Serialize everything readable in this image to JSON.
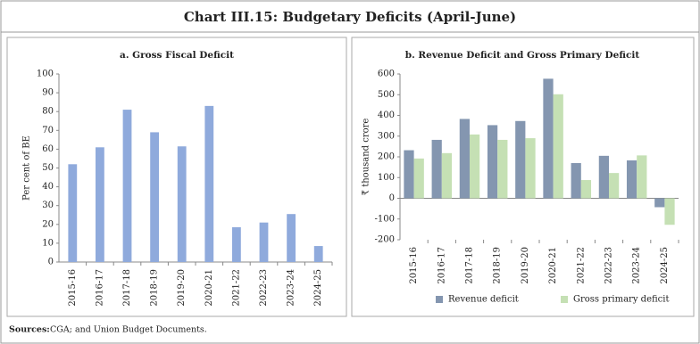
{
  "title": "Chart III.15: Budgetary Deficits (April-June)",
  "sources": {
    "label": "Sources:",
    "text": "CGA; and Union Budget Documents."
  },
  "chart_data": [
    {
      "type": "bar",
      "title": "a. Gross Fiscal Deficit",
      "y_label": "Per cent of BE",
      "categories": [
        "2015-16",
        "2016-17",
        "2017-18",
        "2018-19",
        "2019-20",
        "2020-21",
        "2021-22",
        "2022-23",
        "2023-24",
        "2024-25"
      ],
      "values": [
        52,
        61,
        81,
        69,
        61.5,
        83,
        18.5,
        21,
        25.5,
        8.5
      ],
      "color": "#8faadc",
      "ylim": [
        0,
        100
      ],
      "yticks": [
        0,
        10,
        20,
        30,
        40,
        50,
        60,
        70,
        80,
        90,
        100
      ]
    },
    {
      "type": "bar",
      "title": "b. Revenue Deficit and Gross Primary Deficit",
      "y_label": "₹ thousand crore",
      "categories": [
        "2015-16",
        "2016-17",
        "2017-18",
        "2018-19",
        "2019-20",
        "2020-21",
        "2021-22",
        "2022-23",
        "2023-24",
        "2024-25"
      ],
      "series": [
        {
          "name": "Revenue deficit",
          "color": "#8496b0",
          "values": [
            232,
            282,
            383,
            353,
            373,
            577,
            170,
            205,
            183,
            -43
          ]
        },
        {
          "name": "Gross primary deficit",
          "color": "#c5e0b4",
          "values": [
            192,
            218,
            308,
            282,
            290,
            502,
            88,
            122,
            207,
            -128
          ]
        }
      ],
      "ylim": [
        -200,
        600
      ],
      "yticks": [
        -200,
        -100,
        0,
        100,
        200,
        300,
        400,
        500,
        600
      ],
      "legend": "bottom"
    }
  ]
}
